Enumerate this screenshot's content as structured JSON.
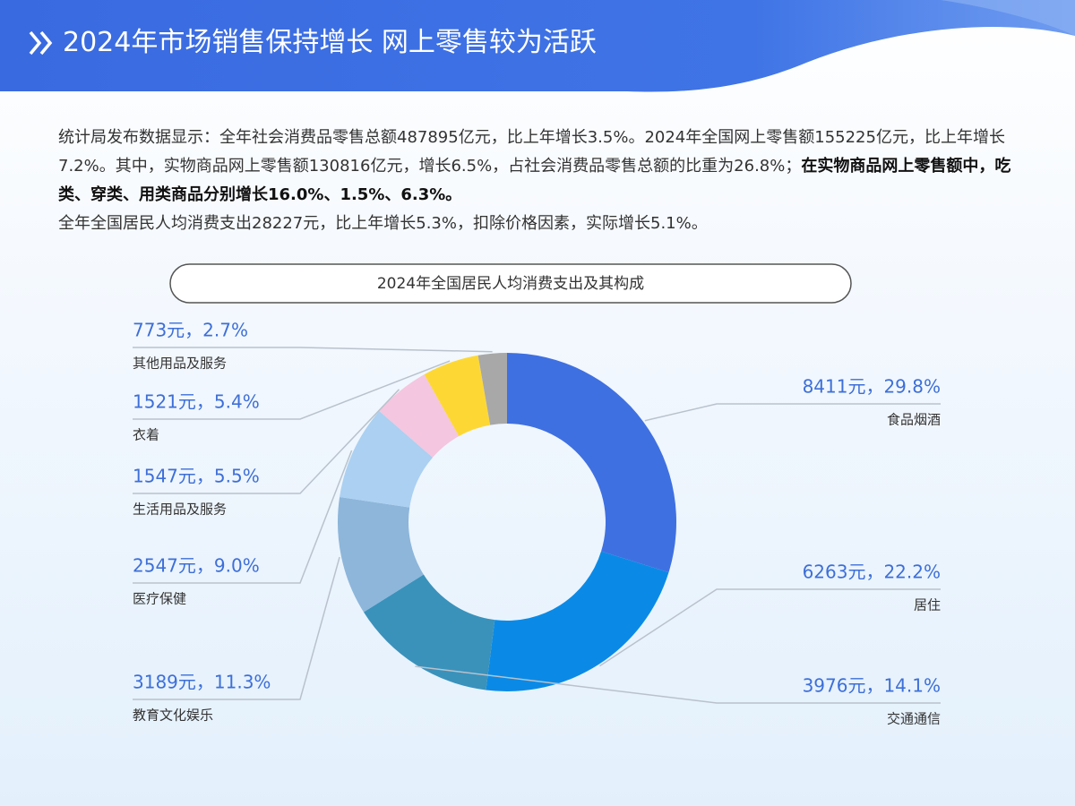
{
  "header": {
    "title": "2024年市场销售保持增长 网上零售较为活跃"
  },
  "body": {
    "paragraph": [
      {
        "text": "统计局发布数据显示：全年社会消费品零售总额487895亿元，比上年增长3.5%。2024年全国网上零售额155225亿元，比上年增长7.2%。其中，实物商品网上零售额130816亿元，增长6.5%，占社会消费品零售总额的比重为26.8%；",
        "bold": false
      },
      {
        "text": "在实物商品网上零售额中，吃类、穿类、用类商品分别增长16.0%、1.5%、6.3%。",
        "bold": true
      },
      {
        "text": "全年全国居民人均消费支出28227元，比上年增长5.3%，扣除价格因素，实际增长5.1%。",
        "bold": false
      }
    ]
  },
  "chart_data": {
    "type": "donut",
    "title": "2024年全国居民人均消费支出及其构成",
    "categories": [
      "食品烟酒",
      "居住",
      "交通通信",
      "教育文化娱乐",
      "医疗保健",
      "生活用品及服务",
      "衣着",
      "其他用品及服务"
    ],
    "values": [
      8411,
      6263,
      3976,
      3189,
      2547,
      1547,
      1521,
      773
    ],
    "value_labels": [
      "8411元，29.8%",
      "6263元，22.2%",
      "3976元，14.1%",
      "3189元，11.3%",
      "2547元，9.0%",
      "1547元，5.5%",
      "1521元，5.4%",
      "773元，2.7%"
    ],
    "colors": [
      "#3f70e1",
      "#0a8ae6",
      "#3a92bb",
      "#8db6da",
      "#abd0f1",
      "#f4c6df",
      "#fdd835",
      "#a8a8a8"
    ]
  }
}
